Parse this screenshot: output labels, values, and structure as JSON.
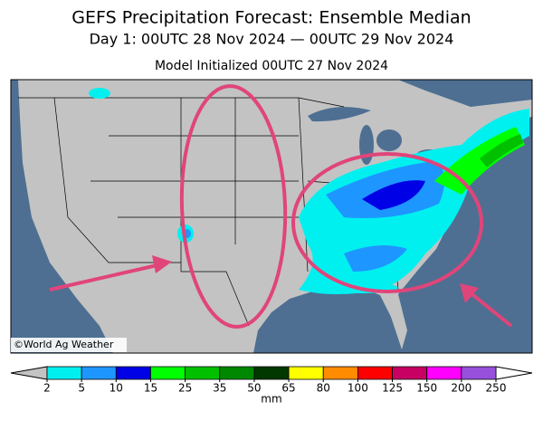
{
  "header": {
    "title": "GEFS Precipitation Forecast: Ensemble Median",
    "subtitle": "Day 1: 00UTC 28 Nov 2024 — 00UTC 29 Nov 2024",
    "initialized": "Model Initialized 00UTC 27 Nov 2024"
  },
  "map": {
    "credit": "©World Ag Weather"
  },
  "colorbar": {
    "ticks": [
      2,
      5,
      10,
      15,
      25,
      35,
      50,
      65,
      80,
      100,
      125,
      150,
      200,
      250
    ],
    "colors": [
      "#00f0f0",
      "#1e96ff",
      "#0000e6",
      "#00ff00",
      "#00c000",
      "#008800",
      "#003800",
      "#ffff00",
      "#ff8c00",
      "#ff0000",
      "#c80064",
      "#ff00ff",
      "#9650dc"
    ],
    "unit": "mm"
  }
}
